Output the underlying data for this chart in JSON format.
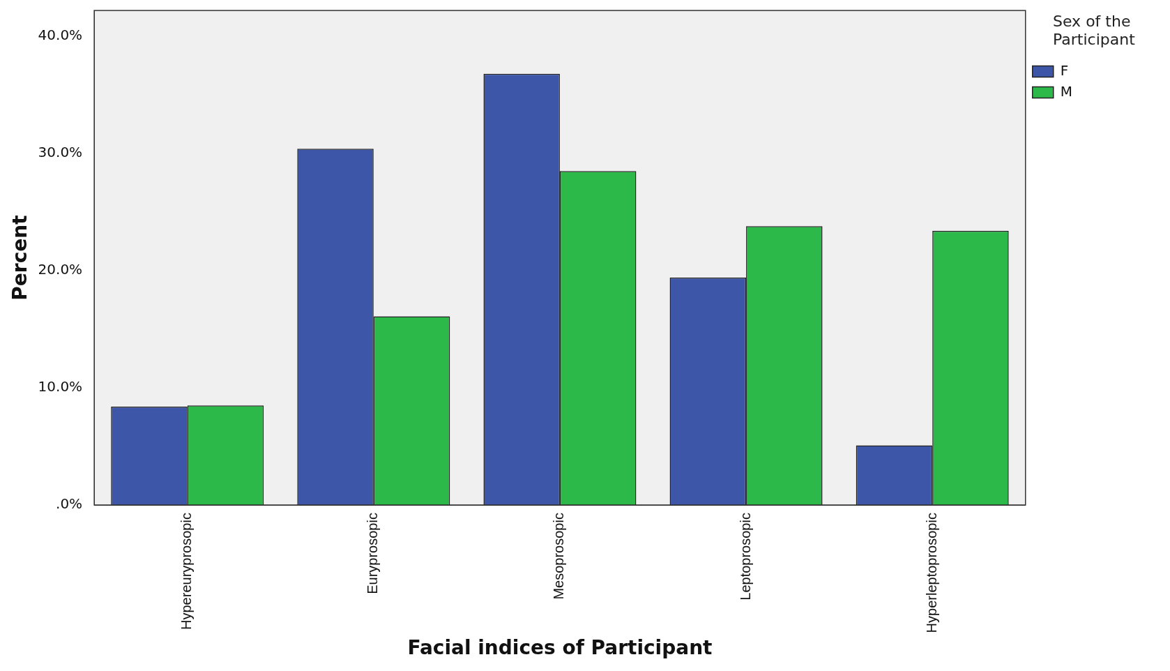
{
  "chart_data": {
    "type": "bar",
    "xlabel": "Facial indices of Participant",
    "ylabel": "Percent",
    "legend_title": "Sex of the Participant",
    "legend": "top right",
    "categories": [
      "Hypereuryprosopic",
      "Euryprosopic",
      "Mesoprosopic",
      "Leptoprosopic",
      "Hyperleptoprosopic"
    ],
    "series": [
      {
        "name": "F",
        "color": "#3d56a8",
        "values": [
          8.4,
          30.4,
          36.8,
          19.4,
          5.1
        ]
      },
      {
        "name": "M",
        "color": "#2db84a",
        "values": [
          8.5,
          16.1,
          28.5,
          23.8,
          23.4
        ]
      }
    ],
    "ylim": [
      0,
      42.2
    ],
    "yticks": [
      {
        "value": 0,
        "label": ".0%"
      },
      {
        "value": 10,
        "label": "10.0%"
      },
      {
        "value": 20,
        "label": "20.0%"
      },
      {
        "value": 30,
        "label": "30.0%"
      },
      {
        "value": 40,
        "label": "40.0%"
      }
    ],
    "grid": false
  }
}
